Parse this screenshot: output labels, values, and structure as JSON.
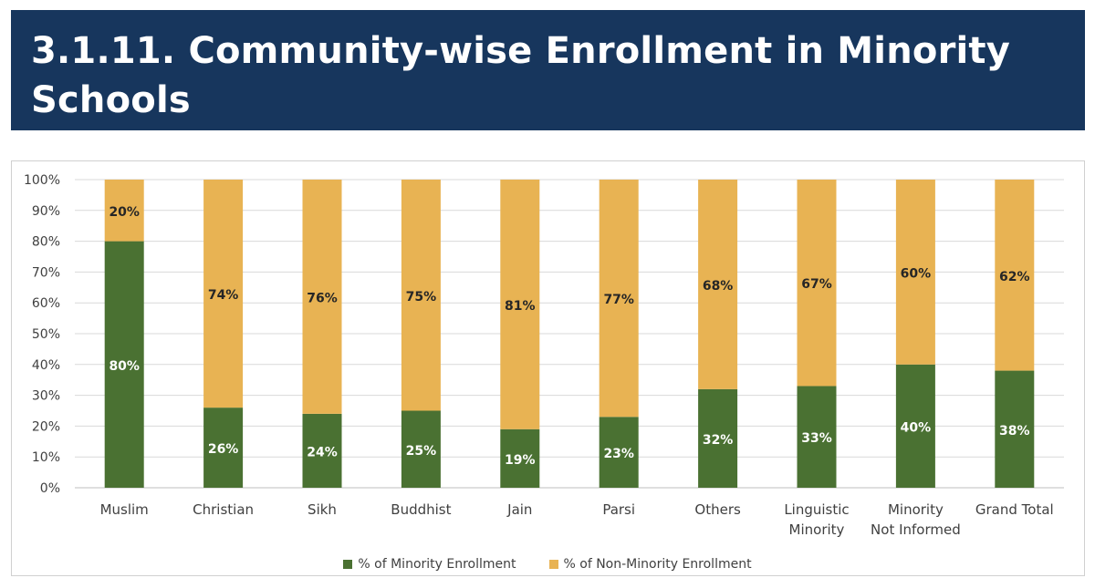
{
  "header": {
    "title": "3.1.11. Community-wise Enrollment in Minority Schools"
  },
  "colors": {
    "header_bg": "#17365d",
    "minority": "#4a7132",
    "non_minority": "#e8b353"
  },
  "chart_data": {
    "type": "bar",
    "stacked": true,
    "percent_stacked": true,
    "categories": [
      [
        "Muslim"
      ],
      [
        "Christian"
      ],
      [
        "Sikh"
      ],
      [
        "Buddhist"
      ],
      [
        "Jain"
      ],
      [
        "Parsi"
      ],
      [
        "Others"
      ],
      [
        "Linguistic",
        "Minority"
      ],
      [
        "Minority",
        "Not Informed"
      ],
      [
        "Grand Total"
      ]
    ],
    "series": [
      {
        "name": "% of Minority Enrollment",
        "color": "#4a7132",
        "values": [
          80,
          26,
          24,
          25,
          19,
          23,
          32,
          33,
          40,
          38
        ],
        "labels": [
          "80%",
          "26%",
          "24%",
          "25%",
          "19%",
          "23%",
          "32%",
          "33%",
          "40%",
          "38%"
        ]
      },
      {
        "name": "% of Non-Minority Enrollment",
        "color": "#e8b353",
        "values": [
          20,
          74,
          76,
          75,
          81,
          77,
          68,
          67,
          60,
          62
        ],
        "labels": [
          "20%",
          "74%",
          "76%",
          "75%",
          "81%",
          "77%",
          "68%",
          "67%",
          "60%",
          "62%"
        ]
      }
    ],
    "y_ticks": [
      "0%",
      "10%",
      "20%",
      "30%",
      "40%",
      "50%",
      "60%",
      "70%",
      "80%",
      "90%",
      "100%"
    ],
    "ylim": [
      0,
      100
    ],
    "grid": true,
    "legend": "bottom"
  }
}
